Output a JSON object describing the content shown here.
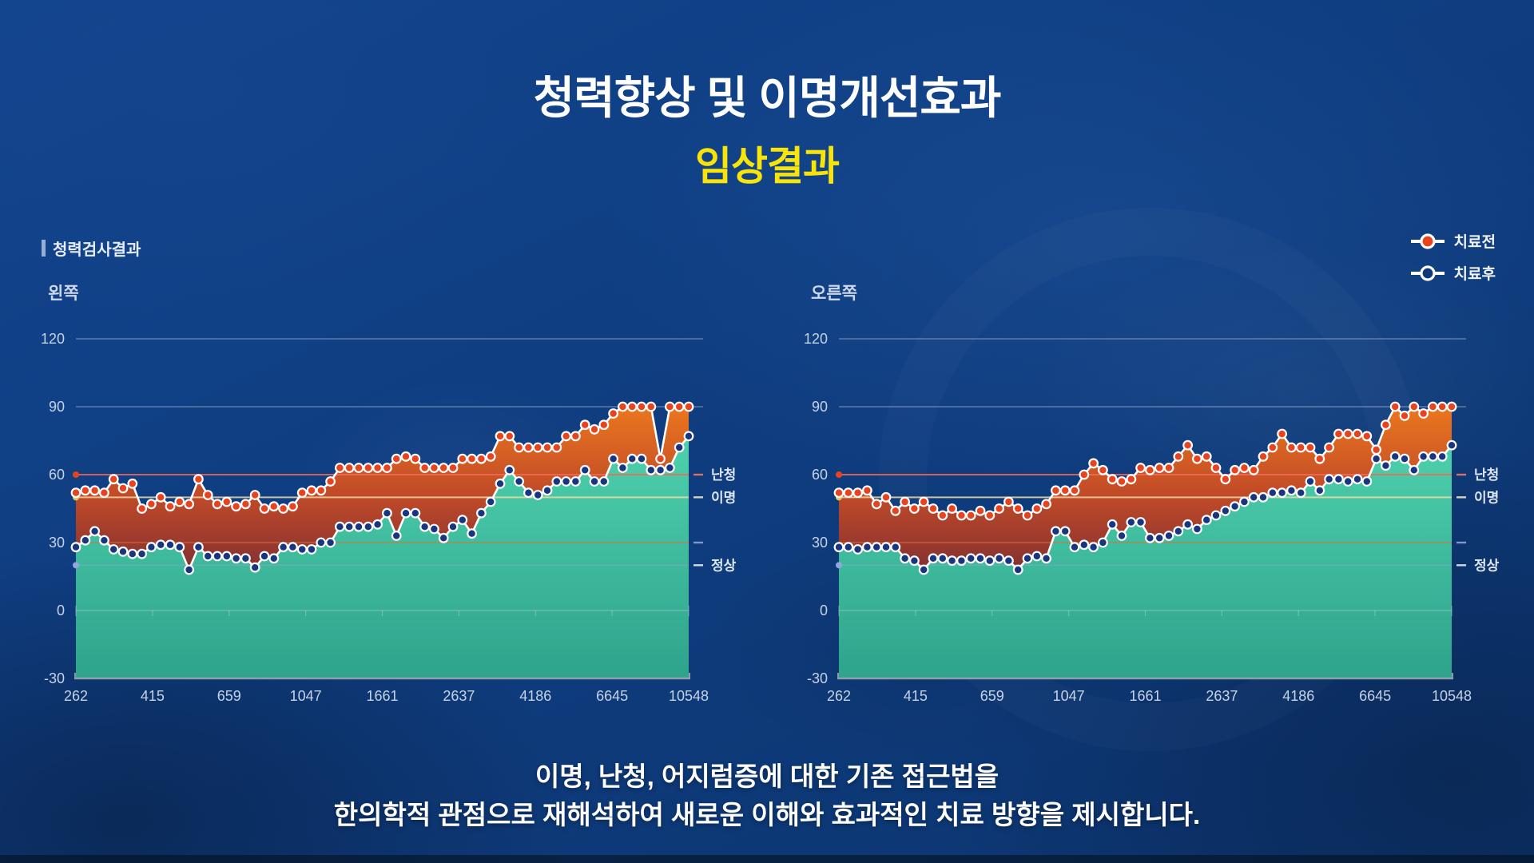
{
  "title": "청력향상 및 이명개선효과",
  "subtitle": "임상결과",
  "section_label": "청력검사결과",
  "legend": [
    {
      "label": "치료전",
      "marker_fill": "#e8431f",
      "marker_stroke": "#ffffff"
    },
    {
      "label": "치료후",
      "marker_fill": "#10387a",
      "marker_stroke": "#ffffff"
    }
  ],
  "footer": {
    "line1": "이명, 난청, 어지럼증에 대한 기존 접근법을",
    "line2": "한의학적 관점으로 재해석하여 새로운 이해와 효과적인 치료 방향을 제시합니다."
  },
  "colors": {
    "background": "#0f3d80",
    "title_text": "#ffffff",
    "subtitle_text": "#f8e408",
    "axis_text": "#c6d2e6",
    "gridline": "#c3cede",
    "baseline": "#9aa4b2",
    "series_line": "#ffffff",
    "before_marker": "#e8431f",
    "after_marker": "#1a3580",
    "band_top": "#f07c1d",
    "band_bottom": "#7e2e33",
    "area_top": "#4fd2ae",
    "area_bottom": "#2fa38c",
    "threshold_60": "#f06a55",
    "threshold_50": "#ecd9a4",
    "threshold_30": "#de7038",
    "threshold_20": "#93a4e0"
  },
  "chart_data": [
    {
      "type": "area",
      "title": "왼쪽",
      "x_tick_labels": [
        "262",
        "415",
        "659",
        "1047",
        "1661",
        "2637",
        "4186",
        "6645",
        "10548"
      ],
      "y_tick_labels": [
        "120",
        "90",
        "60",
        "30",
        "0",
        "-30"
      ],
      "ylim": [
        -30,
        120
      ],
      "grid_levels": [
        120,
        90,
        0
      ],
      "thresholds": [
        {
          "label": "난청",
          "value": 60
        },
        {
          "label": "이명",
          "value": 50
        },
        {
          "label": "",
          "value": 30
        },
        {
          "label": "정상",
          "value": 20
        }
      ],
      "series": [
        {
          "name": "치료전",
          "values": [
            52,
            53,
            53,
            52,
            58,
            54,
            56,
            45,
            47,
            50,
            46,
            48,
            47,
            58,
            51,
            47,
            48,
            46,
            47,
            51,
            45,
            46,
            45,
            46,
            52,
            53,
            53,
            57,
            63,
            63,
            63,
            63,
            63,
            63,
            67,
            68,
            67,
            63,
            63,
            63,
            63,
            67,
            67,
            67,
            68,
            77,
            77,
            72,
            72,
            72,
            72,
            72,
            77,
            77,
            82,
            80,
            82,
            87,
            90,
            90,
            90,
            90,
            67,
            90,
            90,
            90
          ]
        },
        {
          "name": "치료후",
          "values": [
            28,
            31,
            35,
            31,
            27,
            26,
            25,
            25,
            28,
            29,
            29,
            28,
            18,
            28,
            24,
            24,
            24,
            23,
            23,
            19,
            24,
            23,
            28,
            28,
            27,
            27,
            30,
            30,
            37,
            37,
            37,
            37,
            38,
            43,
            33,
            43,
            43,
            37,
            36,
            32,
            37,
            40,
            34,
            43,
            48,
            56,
            62,
            57,
            52,
            51,
            53,
            57,
            57,
            57,
            62,
            57,
            57,
            67,
            63,
            67,
            67,
            62,
            62,
            63,
            72,
            77
          ]
        }
      ]
    },
    {
      "type": "area",
      "title": "오른쪽",
      "x_tick_labels": [
        "262",
        "415",
        "659",
        "1047",
        "1661",
        "2637",
        "4186",
        "6645",
        "10548"
      ],
      "y_tick_labels": [
        "120",
        "90",
        "60",
        "30",
        "0",
        "-30"
      ],
      "ylim": [
        -30,
        120
      ],
      "grid_levels": [
        120,
        90,
        0
      ],
      "thresholds": [
        {
          "label": "난청",
          "value": 60
        },
        {
          "label": "이명",
          "value": 50
        },
        {
          "label": "",
          "value": 30
        },
        {
          "label": "정상",
          "value": 20
        }
      ],
      "series": [
        {
          "name": "치료전",
          "values": [
            52,
            52,
            52,
            53,
            47,
            50,
            44,
            48,
            45,
            48,
            45,
            42,
            45,
            42,
            42,
            44,
            42,
            45,
            48,
            45,
            42,
            45,
            47,
            53,
            53,
            53,
            60,
            65,
            62,
            58,
            57,
            58,
            63,
            62,
            63,
            63,
            68,
            73,
            67,
            68,
            63,
            58,
            62,
            63,
            62,
            68,
            72,
            78,
            72,
            72,
            72,
            67,
            72,
            78,
            78,
            78,
            77,
            71,
            82,
            90,
            86,
            90,
            87,
            90,
            90,
            90
          ]
        },
        {
          "name": "치료후",
          "values": [
            28,
            28,
            27,
            28,
            28,
            28,
            28,
            23,
            22,
            18,
            23,
            23,
            22,
            22,
            23,
            23,
            22,
            23,
            22,
            18,
            23,
            24,
            23,
            35,
            35,
            28,
            29,
            28,
            30,
            38,
            33,
            39,
            39,
            32,
            32,
            33,
            35,
            38,
            36,
            40,
            42,
            44,
            46,
            48,
            50,
            50,
            52,
            52,
            53,
            52,
            57,
            53,
            58,
            58,
            57,
            58,
            57,
            67,
            64,
            68,
            67,
            62,
            68,
            68,
            68,
            73
          ]
        }
      ]
    }
  ]
}
